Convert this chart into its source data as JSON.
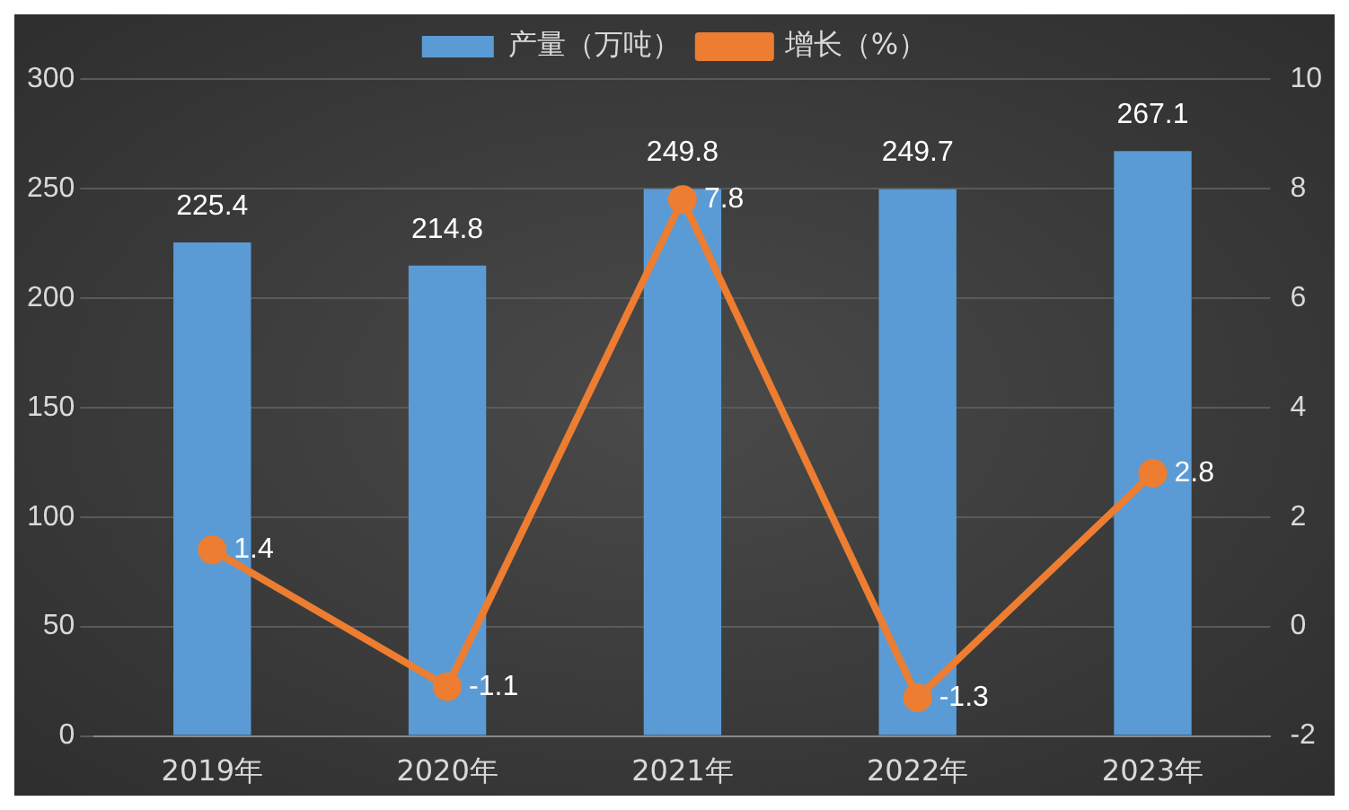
{
  "chart_data": {
    "type": "bar",
    "categories": [
      "2019年",
      "2020年",
      "2021年",
      "2022年",
      "2023年"
    ],
    "series": [
      {
        "name": "产量（万吨）",
        "color": "#5b9bd5",
        "values": [
          225.4,
          214.8,
          249.8,
          249.7,
          267.1
        ]
      },
      {
        "name": "增长（%）",
        "type": "line",
        "axis": "y2",
        "color": "#ed7d31",
        "values": [
          1.4,
          -1.1,
          7.8,
          -1.3,
          2.8
        ]
      }
    ],
    "ylim": [
      0,
      300
    ],
    "yticks": [
      0,
      50,
      100,
      150,
      200,
      250,
      300
    ],
    "y2lim": [
      -2,
      10
    ],
    "y2ticks": [
      -2,
      0,
      2,
      4,
      6,
      8,
      10
    ],
    "grid": "y",
    "legend": "top",
    "marker": "circle",
    "data_labels": true
  }
}
